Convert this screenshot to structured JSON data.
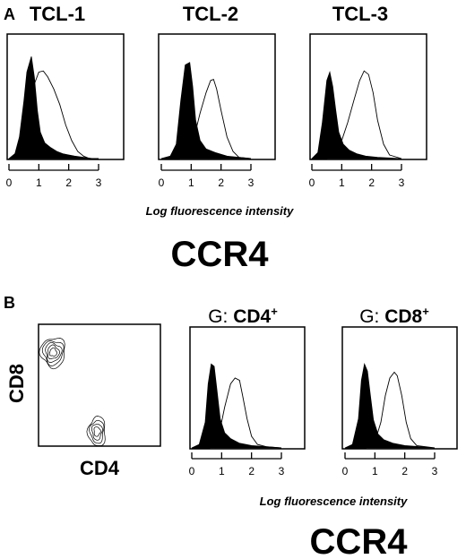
{
  "figure": {
    "panel_a": {
      "letter": "A",
      "xaxis_label": "Log fluorescence intensity",
      "marker_label": "CCR4"
    },
    "panel_b": {
      "letter": "B",
      "marker_label": "CCR4",
      "xaxis_label": "Log fluorescence intensity",
      "scatter_xlabel": "CD4",
      "scatter_ylabel": "CD8",
      "gate_titles": [
        {
          "prefix": "G: ",
          "name": "CD4",
          "sup": "+"
        },
        {
          "prefix": "G: ",
          "name": "CD8",
          "sup": "+"
        }
      ]
    }
  },
  "chart_data": [
    {
      "id": "tcl1",
      "type": "area",
      "title": "TCL-1",
      "xlim": [
        0,
        3
      ],
      "xticks": [
        "0",
        "1",
        "2",
        "3"
      ],
      "series": [
        {
          "name": "",
          "fill": "#000000",
          "x": [
            0.0,
            0.2,
            0.35,
            0.5,
            0.6,
            0.75,
            0.85,
            0.95,
            1.05,
            1.2,
            1.4,
            1.6,
            1.8,
            2.0,
            2.2,
            2.5,
            2.8,
            3.0
          ],
          "y": [
            0.0,
            0.04,
            0.18,
            0.48,
            0.72,
            0.85,
            0.68,
            0.4,
            0.22,
            0.13,
            0.09,
            0.06,
            0.04,
            0.03,
            0.02,
            0.01,
            0.0,
            0.0
          ]
        },
        {
          "name": "",
          "fill": "none",
          "x": [
            0.0,
            0.3,
            0.5,
            0.7,
            0.85,
            1.0,
            1.15,
            1.3,
            1.5,
            1.7,
            1.9,
            2.1,
            2.3,
            2.5,
            2.7,
            3.0
          ],
          "y": [
            0.0,
            0.03,
            0.12,
            0.4,
            0.62,
            0.72,
            0.73,
            0.68,
            0.58,
            0.45,
            0.28,
            0.15,
            0.06,
            0.02,
            0.0,
            0.0
          ]
        }
      ]
    },
    {
      "id": "tcl2",
      "type": "area",
      "title": "TCL-2",
      "xlim": [
        0,
        3
      ],
      "xticks": [
        "0",
        "1",
        "2",
        "3"
      ],
      "series": [
        {
          "name": "",
          "fill": "#000000",
          "x": [
            0.0,
            0.3,
            0.5,
            0.65,
            0.8,
            0.95,
            1.05,
            1.15,
            1.3,
            1.5,
            1.8,
            2.2,
            2.6,
            3.0
          ],
          "y": [
            0.0,
            0.02,
            0.12,
            0.48,
            0.78,
            0.8,
            0.6,
            0.32,
            0.15,
            0.08,
            0.05,
            0.02,
            0.01,
            0.0
          ]
        },
        {
          "name": "",
          "fill": "none",
          "x": [
            0.0,
            0.6,
            0.9,
            1.1,
            1.3,
            1.5,
            1.65,
            1.75,
            1.85,
            2.0,
            2.2,
            2.4,
            2.6,
            3.0
          ],
          "y": [
            0.0,
            0.0,
            0.05,
            0.18,
            0.38,
            0.55,
            0.65,
            0.66,
            0.58,
            0.4,
            0.18,
            0.06,
            0.01,
            0.0
          ]
        }
      ]
    },
    {
      "id": "tcl3",
      "type": "area",
      "title": "TCL-3",
      "xlim": [
        0,
        3
      ],
      "xticks": [
        "0",
        "1",
        "2",
        "3"
      ],
      "series": [
        {
          "name": "",
          "fill": "#000000",
          "x": [
            0.0,
            0.2,
            0.35,
            0.5,
            0.6,
            0.7,
            0.8,
            0.9,
            1.05,
            1.25,
            1.5,
            1.8,
            2.2,
            3.0
          ],
          "y": [
            0.0,
            0.05,
            0.3,
            0.65,
            0.72,
            0.6,
            0.4,
            0.22,
            0.12,
            0.07,
            0.04,
            0.02,
            0.01,
            0.0
          ]
        },
        {
          "name": "",
          "fill": "none",
          "x": [
            0.0,
            0.5,
            0.8,
            1.0,
            1.2,
            1.4,
            1.6,
            1.75,
            1.9,
            2.05,
            2.2,
            2.4,
            2.6,
            3.0
          ],
          "y": [
            0.0,
            0.0,
            0.06,
            0.15,
            0.3,
            0.48,
            0.65,
            0.73,
            0.7,
            0.55,
            0.32,
            0.12,
            0.03,
            0.0
          ]
        }
      ]
    },
    {
      "id": "gcd4",
      "type": "area",
      "title": "G: CD4+",
      "xlim": [
        0,
        3
      ],
      "xticks": [
        "0",
        "1",
        "2",
        "3"
      ],
      "series": [
        {
          "name": "",
          "fill": "#000000",
          "x": [
            0.0,
            0.25,
            0.45,
            0.55,
            0.65,
            0.75,
            0.85,
            0.95,
            1.1,
            1.3,
            1.6,
            2.0,
            2.5,
            3.0
          ],
          "y": [
            0.0,
            0.03,
            0.22,
            0.55,
            0.72,
            0.7,
            0.48,
            0.25,
            0.13,
            0.08,
            0.04,
            0.02,
            0.01,
            0.0
          ]
        },
        {
          "name": "",
          "fill": "none",
          "x": [
            0.0,
            0.6,
            0.9,
            1.1,
            1.3,
            1.45,
            1.6,
            1.7,
            1.85,
            2.0,
            2.2,
            2.5,
            3.0
          ],
          "y": [
            0.0,
            0.0,
            0.1,
            0.35,
            0.55,
            0.6,
            0.58,
            0.45,
            0.25,
            0.1,
            0.03,
            0.01,
            0.0
          ]
        }
      ]
    },
    {
      "id": "gcd8",
      "type": "area",
      "title": "G: CD8+",
      "xlim": [
        0,
        3
      ],
      "xticks": [
        "0",
        "1",
        "2",
        "3"
      ],
      "series": [
        {
          "name": "",
          "fill": "#000000",
          "x": [
            0.0,
            0.25,
            0.45,
            0.55,
            0.65,
            0.75,
            0.85,
            0.95,
            1.1,
            1.3,
            1.6,
            2.0,
            2.5,
            3.0
          ],
          "y": [
            0.0,
            0.03,
            0.25,
            0.58,
            0.72,
            0.66,
            0.45,
            0.24,
            0.12,
            0.07,
            0.04,
            0.02,
            0.01,
            0.0
          ]
        },
        {
          "name": "",
          "fill": "none",
          "x": [
            0.0,
            0.7,
            1.0,
            1.2,
            1.35,
            1.5,
            1.65,
            1.75,
            1.9,
            2.05,
            2.2,
            2.4,
            3.0
          ],
          "y": [
            0.0,
            0.0,
            0.05,
            0.22,
            0.45,
            0.6,
            0.65,
            0.62,
            0.45,
            0.22,
            0.08,
            0.02,
            0.0
          ]
        }
      ]
    },
    {
      "id": "scatter",
      "type": "scatter",
      "title": "",
      "xlabel": "CD4",
      "ylabel": "CD8",
      "populations": [
        {
          "name": "",
          "center": [
            0.12,
            0.77
          ],
          "spread": [
            0.09,
            0.11
          ],
          "levels": 5
        },
        {
          "name": "",
          "center": [
            0.48,
            0.12
          ],
          "spread": [
            0.06,
            0.11
          ],
          "levels": 4
        }
      ]
    }
  ]
}
